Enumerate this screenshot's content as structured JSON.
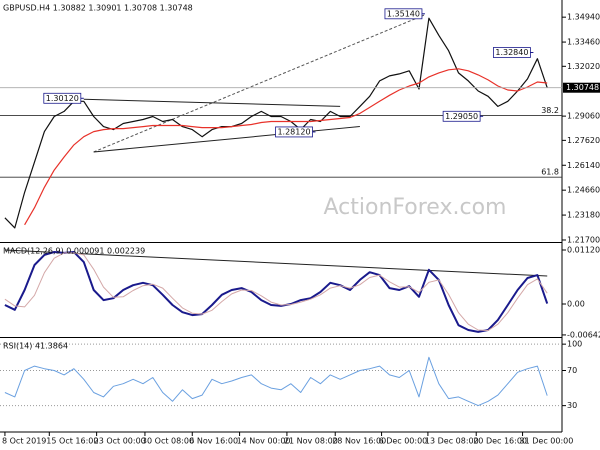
{
  "chart_data": [
    {
      "type": "line",
      "title": "GBPUSD.H4 1.30882 1.30901 1.30708 1.30748",
      "watermark": "ActionForex.com",
      "ylim": [
        1.2158,
        1.3596
      ],
      "yticks": [
        {
          "value": 1.3494,
          "label": "1.34940"
        },
        {
          "value": 1.3346,
          "label": "1.33460"
        },
        {
          "value": 1.3202,
          "label": "1.32020"
        },
        {
          "value": 1.2906,
          "label": "1.29060"
        },
        {
          "value": 1.2762,
          "label": "1.27620"
        },
        {
          "value": 1.2614,
          "label": "1.26140"
        },
        {
          "value": 1.2466,
          "label": "1.24660"
        },
        {
          "value": 1.2318,
          "label": "1.23180"
        },
        {
          "value": 1.217,
          "label": "1.21700"
        }
      ],
      "last_price": {
        "value": 1.30748,
        "label": "1.30748"
      },
      "series": [
        {
          "color": "#111111",
          "width": 1.2,
          "values": [
            1.2302,
            1.2242,
            1.2453,
            1.2633,
            1.2814,
            1.2904,
            1.2934,
            1.2994,
            1.2994,
            1.2904,
            1.2844,
            1.2826,
            1.2862,
            1.2874,
            1.2886,
            1.2904,
            1.2874,
            1.2886,
            1.2844,
            1.2826,
            1.2784,
            1.2826,
            1.2844,
            1.2844,
            1.2862,
            1.2904,
            1.2934,
            1.2904,
            1.2904,
            1.2874,
            1.2826,
            1.2886,
            1.2874,
            1.2934,
            1.2904,
            1.2904,
            1.2964,
            1.3024,
            1.3115,
            1.3145,
            1.3157,
            1.3175,
            1.3067,
            1.3488,
            1.3386,
            1.3295,
            1.3163,
            1.3115,
            1.3055,
            1.3024,
            1.2964,
            1.2994,
            1.3055,
            1.3127,
            1.3247,
            1.30748
          ]
        },
        {
          "color": "#e8322a",
          "width": 1.2,
          "values": [
            null,
            null,
            1.226,
            1.2362,
            1.2483,
            1.2585,
            1.2663,
            1.2735,
            1.2784,
            1.2814,
            1.2826,
            1.2832,
            1.2832,
            1.2838,
            1.2844,
            1.285,
            1.285,
            1.285,
            1.285,
            1.2844,
            1.2838,
            1.2838,
            1.2838,
            1.2844,
            1.285,
            1.2856,
            1.2868,
            1.2874,
            1.2874,
            1.2874,
            1.2874,
            1.2874,
            1.288,
            1.2886,
            1.2892,
            1.2898,
            1.2922,
            1.2958,
            1.2994,
            1.303,
            1.3061,
            1.3085,
            1.3103,
            1.3139,
            1.3163,
            1.3181,
            1.3187,
            1.3175,
            1.3151,
            1.3121,
            1.3085,
            1.3061,
            1.3055,
            1.3079,
            1.3109,
            1.3103
          ]
        }
      ],
      "trendlines": [
        {
          "color": "#555555",
          "dash": true,
          "x": [
            9,
            42.5
          ],
          "y": [
            1.2693,
            1.3506
          ]
        },
        {
          "color": "#222222",
          "dash": false,
          "x": [
            8,
            34
          ],
          "y": [
            1.3006,
            1.2964
          ]
        },
        {
          "color": "#222222",
          "dash": false,
          "x": [
            9,
            36
          ],
          "y": [
            1.2693,
            1.2844
          ]
        }
      ],
      "levels": [
        {
          "value": 1.291,
          "label": "38.2"
        },
        {
          "value": 1.2543,
          "label": "61.8"
        }
      ],
      "price_labels": [
        {
          "x": 42.6,
          "value": 1.3514,
          "label": "1.35140"
        },
        {
          "x": 53.6,
          "value": 1.3284,
          "label": "1.32840"
        },
        {
          "x": 8,
          "value": 1.3012,
          "label": "1.30120"
        },
        {
          "x": 31.5,
          "value": 1.2812,
          "label": "1.28120"
        },
        {
          "x": 48.5,
          "value": 1.2905,
          "label": "1.29050"
        }
      ]
    },
    {
      "type": "line",
      "title": "MACD(12,26,9) 0.000091 0.002239",
      "ylim": [
        -0.00685,
        0.01266
      ],
      "yticks": [
        0.011209,
        {
          "value": 0,
          "label": "0.00"
        },
        -0.00642
      ],
      "series": [
        {
          "color": "#1a1a8c",
          "width": 2,
          "values": [
            -0.0002,
            -0.0012,
            0.0029,
            0.0081,
            0.0102,
            0.0108,
            0.0106,
            0.0108,
            0.0087,
            0.0029,
            0.0008,
            0.0012,
            0.0029,
            0.0039,
            0.0044,
            0.0039,
            0.0019,
            -0.0002,
            -0.0017,
            -0.0023,
            -0.0021,
            -0.0002,
            0.0019,
            0.0029,
            0.0033,
            0.0025,
            0.0008,
            -0.0002,
            -0.0004,
            0,
            0.0008,
            0.0012,
            0.0025,
            0.0044,
            0.0039,
            0.0029,
            0.005,
            0.0066,
            0.006,
            0.0033,
            0.0029,
            0.0037,
            0.0015,
            0.0071,
            0.005,
            -0.0002,
            -0.0044,
            -0.0054,
            -0.0058,
            -0.0054,
            -0.0033,
            -0.0002,
            0.0029,
            0.0054,
            0.006,
            9.1e-05
          ]
        },
        {
          "color": "#d4a8a8",
          "width": 1,
          "values": [
            0.001,
            -0.0004,
            -0.0006,
            0.0018,
            0.0065,
            0.0095,
            0.0106,
            0.0106,
            0.0102,
            0.0072,
            0.0035,
            0.0014,
            0.0015,
            0.0028,
            0.0038,
            0.0041,
            0.0033,
            0.0012,
            -0.0008,
            -0.0019,
            -0.0021,
            -0.0013,
            0.0005,
            0.0021,
            0.0029,
            0.0028,
            0.0017,
            0.0004,
            -0.0002,
            -0.0001,
            0.0004,
            0.001,
            0.0019,
            0.0033,
            0.0038,
            0.0033,
            0.004,
            0.0055,
            0.006,
            0.0046,
            0.0035,
            0.0036,
            0.0024,
            0.0045,
            0.005,
            0.002,
            -0.0018,
            -0.0042,
            -0.0054,
            -0.0055,
            -0.0042,
            -0.0018,
            0.0012,
            0.004,
            0.0052,
            0.002239
          ]
        }
      ],
      "trendlines": [
        {
          "color": "#222222",
          "dash": false,
          "x": [
            0,
            55
          ],
          "y": [
            0.0112,
            0.0058
          ]
        }
      ]
    },
    {
      "type": "line",
      "title": "RSI(14) 41.3864",
      "ylim": [
        0,
        107
      ],
      "yticks": [
        100,
        70,
        30
      ],
      "grid": true,
      "series": [
        {
          "color": "#6aa0e0",
          "width": 1,
          "values": [
            45,
            40,
            70,
            75,
            72,
            70,
            65,
            72,
            60,
            45,
            40,
            52,
            55,
            60,
            55,
            62,
            45,
            35,
            48,
            38,
            42,
            60,
            55,
            58,
            62,
            65,
            55,
            50,
            48,
            55,
            45,
            62,
            55,
            65,
            60,
            65,
            70,
            72,
            75,
            65,
            62,
            70,
            40,
            85,
            55,
            38,
            40,
            35,
            30,
            35,
            42,
            55,
            68,
            72,
            75,
            41.3864
          ]
        }
      ],
      "xlim": [
        -0.5,
        56.5
      ],
      "xticks": [
        {
          "value": 0,
          "label": "8 Oct 2019"
        },
        {
          "value": 4.5,
          "label": "15 Oct 16:00"
        },
        {
          "value": 9.3,
          "label": "23 Oct 00:00"
        },
        {
          "value": 14.2,
          "label": "30 Oct 08:00"
        },
        {
          "value": 19,
          "label": "6 Nov 16:00"
        },
        {
          "value": 23.8,
          "label": "14 Nov 00:00"
        },
        {
          "value": 28.6,
          "label": "21 Nov 08:00"
        },
        {
          "value": 33.5,
          "label": "28 Nov 16:00"
        },
        {
          "value": 38.2,
          "label": "6 Dec 00:00"
        },
        {
          "value": 42.9,
          "label": "13 Dec 08:00"
        },
        {
          "value": 47.8,
          "label": "20 Dec 16:00"
        },
        {
          "value": 52.5,
          "label": "31 Dec 00:00"
        }
      ]
    }
  ]
}
